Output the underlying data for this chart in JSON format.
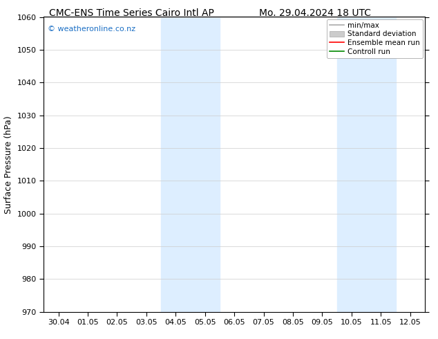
{
  "title_left": "CMC-ENS Time Series Cairo Intl AP",
  "title_right": "Mo. 29.04.2024 18 UTC",
  "ylabel": "Surface Pressure (hPa)",
  "ylim": [
    970,
    1060
  ],
  "yticks": [
    970,
    980,
    990,
    1000,
    1010,
    1020,
    1030,
    1040,
    1050,
    1060
  ],
  "x_tick_labels": [
    "30.04",
    "01.05",
    "02.05",
    "03.05",
    "04.05",
    "05.05",
    "06.05",
    "07.05",
    "08.05",
    "09.05",
    "10.05",
    "11.05",
    "12.05"
  ],
  "watermark": "© weatheronline.co.nz",
  "watermark_color": "#1a6ec4",
  "shaded_regions": [
    {
      "xstart": 4,
      "xend": 6
    },
    {
      "xstart": 10,
      "xend": 12
    }
  ],
  "shaded_color": "#ddeeff",
  "background_color": "#ffffff",
  "grid_color": "#cccccc",
  "legend_items": [
    {
      "label": "min/max",
      "color": "#aaaaaa",
      "style": "line"
    },
    {
      "label": "Standard deviation",
      "color": "#cccccc",
      "style": "band"
    },
    {
      "label": "Ensemble mean run",
      "color": "#ff0000",
      "style": "line"
    },
    {
      "label": "Controll run",
      "color": "#008800",
      "style": "line"
    }
  ],
  "title_fontsize": 10,
  "axis_fontsize": 9,
  "tick_fontsize": 8,
  "legend_fontsize": 7.5
}
